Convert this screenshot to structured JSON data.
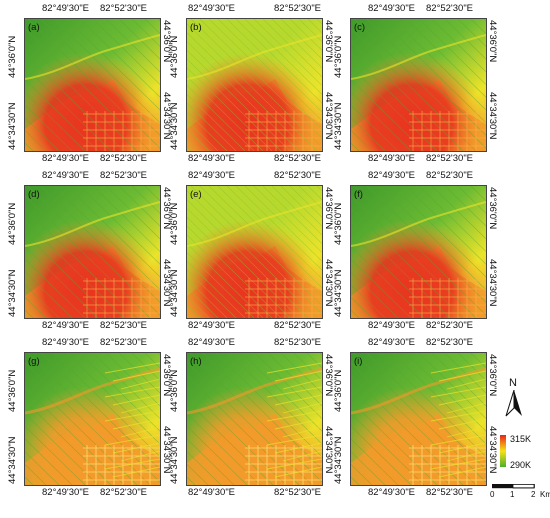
{
  "coords": {
    "lon_left": "82°49'30\"E",
    "lon_right": "82°52'30\"E",
    "lat_top": "44°36'0\"N",
    "lat_bottom": "44°34'30\"N"
  },
  "panels": [
    {
      "label": "(a)",
      "variant": "smooth"
    },
    {
      "label": "(b)",
      "variant": "yellow"
    },
    {
      "label": "(c)",
      "variant": "smooth"
    },
    {
      "label": "(d)",
      "variant": "smooth"
    },
    {
      "label": "(e)",
      "variant": "yellow"
    },
    {
      "label": "(f)",
      "variant": "smooth"
    },
    {
      "label": "(g)",
      "variant": "detail"
    },
    {
      "label": "(h)",
      "variant": "detail"
    },
    {
      "label": "(i)",
      "variant": "detail"
    }
  ],
  "north_arrow": {
    "label": "N"
  },
  "legend": {
    "max_label": "315K",
    "min_label": "290K",
    "colors": {
      "high": "#e8231b",
      "mid": "#f5e313",
      "low": "#4fae2a"
    }
  },
  "scale_bar": {
    "ticks": [
      "0",
      "1",
      "2"
    ],
    "unit": "Km"
  },
  "palette": {
    "green_dark": "#3f9a2b",
    "green": "#6cbb33",
    "yellow_green": "#b7d92e",
    "yellow": "#ece32a",
    "orange": "#f39a2a",
    "red": "#e8341f"
  }
}
